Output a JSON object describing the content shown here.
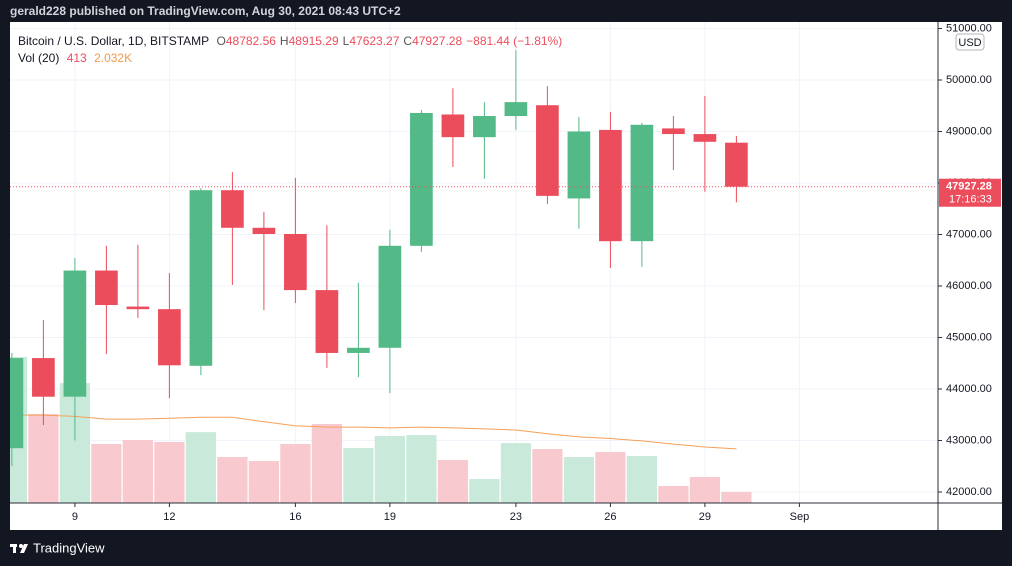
{
  "header": {
    "text": "gerald228 published on TradingView.com, Aug 30, 2021 08:43 UTC+2"
  },
  "footer": {
    "brand": "TradingView"
  },
  "chart_data": {
    "type": "candlestick",
    "title": "Bitcoin / U.S. Dollar, 1D, BITSTAMP",
    "ohlc_legend": [
      {
        "label": "O",
        "value": 48782.56
      },
      {
        "label": "H",
        "value": 48915.29
      },
      {
        "label": "L",
        "value": 47623.27
      },
      {
        "label": "C",
        "value": 47927.28
      }
    ],
    "change": "−881.44 (−1.81%)",
    "volume_legend": {
      "label": "Vol (20)",
      "value": 413,
      "ma": "2.032K"
    },
    "x": [
      7,
      8,
      9,
      10,
      11,
      12,
      13,
      14,
      15,
      16,
      17,
      18,
      19,
      20,
      21,
      22,
      23,
      24,
      25,
      26,
      27,
      28,
      29,
      30
    ],
    "open": [
      42850,
      44600,
      43850,
      46300,
      45600,
      45550,
      44450,
      47860,
      47130,
      47010,
      45920,
      44700,
      44800,
      46780,
      49330,
      48890,
      49300,
      49510,
      47700,
      49030,
      46870,
      49060,
      48950,
      48782.56
    ],
    "high": [
      44700,
      45340,
      46540,
      46780,
      46800,
      46250,
      47900,
      48210,
      47440,
      48100,
      47180,
      46060,
      47090,
      49420,
      49840,
      49570,
      50580,
      49880,
      49280,
      49380,
      49170,
      49300,
      49690,
      48915.29
    ],
    "low": [
      42500,
      43300,
      43000,
      44680,
      45380,
      43820,
      44270,
      46020,
      45530,
      45670,
      44410,
      44230,
      43920,
      46660,
      48310,
      48080,
      49030,
      47590,
      47110,
      46350,
      46370,
      48250,
      47830,
      47623.27
    ],
    "close": [
      44600,
      43850,
      46300,
      45630,
      45550,
      44460,
      47860,
      47130,
      47010,
      45920,
      44700,
      44800,
      46780,
      49360,
      48890,
      49300,
      49570,
      47750,
      49000,
      46870,
      49130,
      48950,
      48800,
      47927.28
    ],
    "volume": [
      5480,
      3340,
      4500,
      2215,
      2365,
      2290,
      2660,
      1725,
      1575,
      2215,
      2965,
      2065,
      2515,
      2550,
      1615,
      900,
      2250,
      2025,
      1725,
      1915,
      1765,
      640,
      975,
      413
    ],
    "volume_ma": [
      3300,
      3300,
      3250,
      3150,
      3150,
      3180,
      3220,
      3220,
      3050,
      2900,
      2850,
      2850,
      2820,
      2850,
      2820,
      2780,
      2740,
      2600,
      2480,
      2420,
      2330,
      2210,
      2100,
      2032
    ],
    "up_color": "#53b987",
    "down_color": "#eb4d5c",
    "volume_up_color": "#c9eadb",
    "volume_down_color": "#f8c9cf",
    "volume_ma_color": "#f5a05a",
    "xlim": [
      6.94,
      36.4
    ],
    "xticks": [
      9,
      12,
      16,
      19,
      23,
      26,
      29,
      {
        "value": 32,
        "label": "Sep"
      }
    ],
    "ylim": [
      41786,
      51126
    ],
    "yticks": [
      {
        "value": 42000,
        "label": "42000.00"
      },
      {
        "value": 43000,
        "label": "43000.00"
      },
      {
        "value": 44000,
        "label": "44000.00"
      },
      {
        "value": 45000,
        "label": "45000.00"
      },
      {
        "value": 46000,
        "label": "46000.00"
      },
      {
        "value": 47000,
        "label": "47000.00"
      },
      {
        "value": 48000,
        "label": "48000.00"
      },
      {
        "value": 49000,
        "label": "49000.00"
      },
      {
        "value": 50000,
        "label": "50000.00"
      },
      {
        "value": 51000,
        "label": "51000.00"
      }
    ],
    "currency": "USD",
    "last_price": {
      "value": 47927.28,
      "countdown": "17:16:33"
    },
    "grid": true
  }
}
